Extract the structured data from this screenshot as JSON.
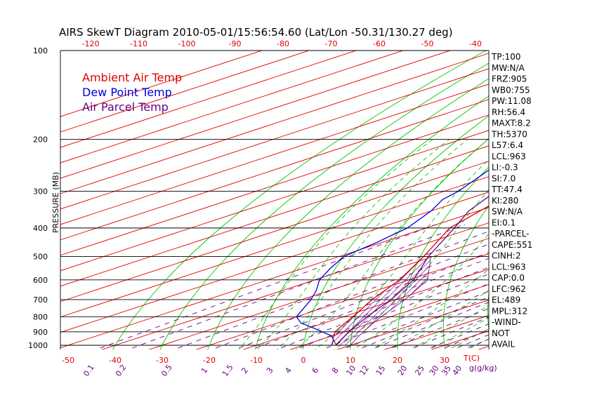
{
  "chart_data": {
    "type": "line",
    "title": "AIRS SkewT Diagram 2010-05-01/15:56:54.60 (Lat/Lon -50.31/130.27 deg)",
    "ylabel": "PRESSURE (MB)",
    "xlabel": "T(C)",
    "mixing_ratio_label": "g(g/kg)",
    "y_scale": "log",
    "ylim": [
      1000,
      100
    ],
    "xlim": [
      -50,
      45
    ],
    "pressure_ticks": [
      100,
      200,
      300,
      400,
      500,
      600,
      700,
      800,
      900,
      1000
    ],
    "top_temp_ticks": [
      -120,
      -110,
      -100,
      -90,
      -80,
      -70,
      -60,
      -50,
      -40
    ],
    "bottom_temp_ticks": [
      -50,
      -40,
      -30,
      -20,
      -10,
      0,
      10,
      20,
      30
    ],
    "mixing_ratio_ticks": [
      "0.1",
      "0.2",
      "0.5",
      "1",
      "1.5",
      "2",
      "3",
      "4",
      "6",
      "8",
      "10",
      "12",
      "15",
      "20",
      "25",
      "30",
      "35",
      "40"
    ],
    "mixing_ratio_values": [
      0.1,
      0.2,
      0.5,
      1,
      1.5,
      2,
      3,
      4,
      6,
      8,
      10,
      12,
      15,
      20,
      25,
      30,
      35,
      40
    ],
    "legend": [
      {
        "name": "Ambient Air Temp",
        "color": "#e00000"
      },
      {
        "name": "Dew Point Temp",
        "color": "#0000e0"
      },
      {
        "name": "Air Parcel Temp",
        "color": "#6a0080"
      }
    ],
    "series": [
      {
        "name": "Ambient Air Temp",
        "color": "#e00000",
        "points": [
          [
            1000,
            7
          ],
          [
            950,
            2
          ],
          [
            900,
            -2
          ],
          [
            850,
            -5
          ],
          [
            800,
            -8
          ],
          [
            700,
            -15
          ],
          [
            600,
            -22
          ],
          [
            500,
            -32
          ],
          [
            400,
            -45
          ],
          [
            300,
            -55
          ],
          [
            260,
            -57
          ],
          [
            240,
            -60
          ],
          [
            200,
            -60
          ],
          [
            170,
            -58
          ],
          [
            150,
            -55
          ],
          [
            130,
            -56
          ],
          [
            115,
            -60
          ],
          [
            100,
            -62
          ]
        ]
      },
      {
        "name": "Dew Point Temp",
        "color": "#0000e0",
        "points": [
          [
            1000,
            6
          ],
          [
            960,
            3
          ],
          [
            930,
            0
          ],
          [
            880,
            -8
          ],
          [
            840,
            -15
          ],
          [
            800,
            -20
          ],
          [
            700,
            -28
          ],
          [
            650,
            -33
          ],
          [
            600,
            -39
          ],
          [
            550,
            -44
          ],
          [
            500,
            -49
          ],
          [
            450,
            -51
          ],
          [
            400,
            -54
          ],
          [
            350,
            -60
          ],
          [
            320,
            -65
          ],
          [
            300,
            -67
          ],
          [
            250,
            -75
          ],
          [
            200,
            -80
          ],
          [
            150,
            -82
          ],
          [
            130,
            -81
          ],
          [
            100,
            -85
          ]
        ]
      },
      {
        "name": "Air Parcel Temp",
        "color": "#6a0080",
        "points": [
          [
            1000,
            7
          ],
          [
            950,
            4
          ],
          [
            900,
            1
          ],
          [
            850,
            -2
          ],
          [
            800,
            -5
          ],
          [
            700,
            -11
          ],
          [
            600,
            -19
          ],
          [
            500,
            -31
          ],
          [
            400,
            -44
          ],
          [
            350,
            -52
          ],
          [
            300,
            -59
          ],
          [
            250,
            -67
          ],
          [
            200,
            -77
          ],
          [
            150,
            -90
          ],
          [
            100,
            -110
          ]
        ]
      }
    ],
    "grid": true,
    "legend_position": "top-left"
  },
  "stats": [
    "TP:100",
    "MW:N/A",
    "FRZ:905",
    "WB0:755",
    "PW:11.08",
    "RH:56.4",
    "MAXT:8.2",
    "TH:5370",
    "L57:6.4",
    "LCL:963",
    "LI:-0.3",
    "SI:7.0",
    "TT:47.4",
    "KI:280",
    "SW:N/A",
    "EI:0.1",
    "-PARCEL-",
    "CAPE:551",
    "CINH:2",
    "LCL:963",
    "CAP:0.0",
    "LFC:962",
    "EL:489",
    "MPL:312",
    "-WIND-",
    "NOT",
    "AVAIL"
  ]
}
